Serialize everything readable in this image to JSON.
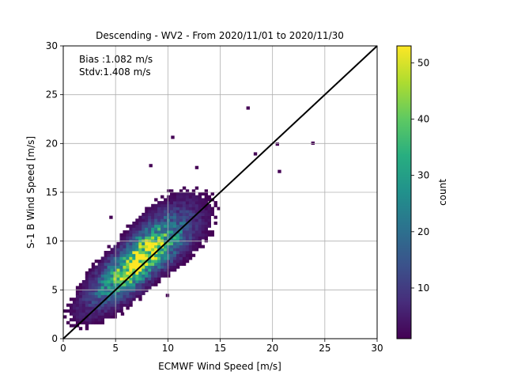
{
  "chart_data": {
    "type": "heatmap",
    "title": "Descending - WV2 - From 2020/11/01 to 2020/11/30",
    "xlabel": "ECMWF Wind Speed [m/s]",
    "ylabel": "S-1 B Wind Speed [m/s]",
    "xlim": [
      0,
      30
    ],
    "ylim": [
      0,
      30
    ],
    "xticks": [
      "0",
      "5",
      "10",
      "15",
      "20",
      "25",
      "30"
    ],
    "yticks": [
      "0",
      "5",
      "10",
      "15",
      "20",
      "25",
      "30"
    ],
    "grid": true,
    "annotations": [
      "Bias :1.082 m/s",
      "Stdv:1.408 m/s"
    ],
    "reference_line": {
      "x": [
        0,
        30
      ],
      "y": [
        0,
        30
      ],
      "color": "#000000"
    },
    "colorbar": {
      "label": "count",
      "range": [
        1,
        53
      ],
      "ticks": [
        "10",
        "20",
        "30",
        "40",
        "50"
      ],
      "colormap": "viridis"
    },
    "density": {
      "bin_width": 0.3,
      "center": [
        7.3,
        8.1
      ],
      "peak_count": 53,
      "spread_along_diagonal": 3.6,
      "spread_across_diagonal": 1.15,
      "bias": 1.082,
      "stdv": 1.408
    },
    "outliers": [
      [
        17.5,
        23.5
      ],
      [
        23.7,
        19.9
      ],
      [
        10.3,
        20.5
      ],
      [
        8.2,
        17.6
      ],
      [
        12.6,
        17.4
      ],
      [
        20.3,
        19.8
      ],
      [
        18.2,
        18.8
      ],
      [
        20.5,
        17.0
      ],
      [
        6.0,
        3.0
      ],
      [
        5.5,
        2.4
      ],
      [
        9.8,
        4.3
      ],
      [
        4.4,
        12.3
      ]
    ]
  }
}
